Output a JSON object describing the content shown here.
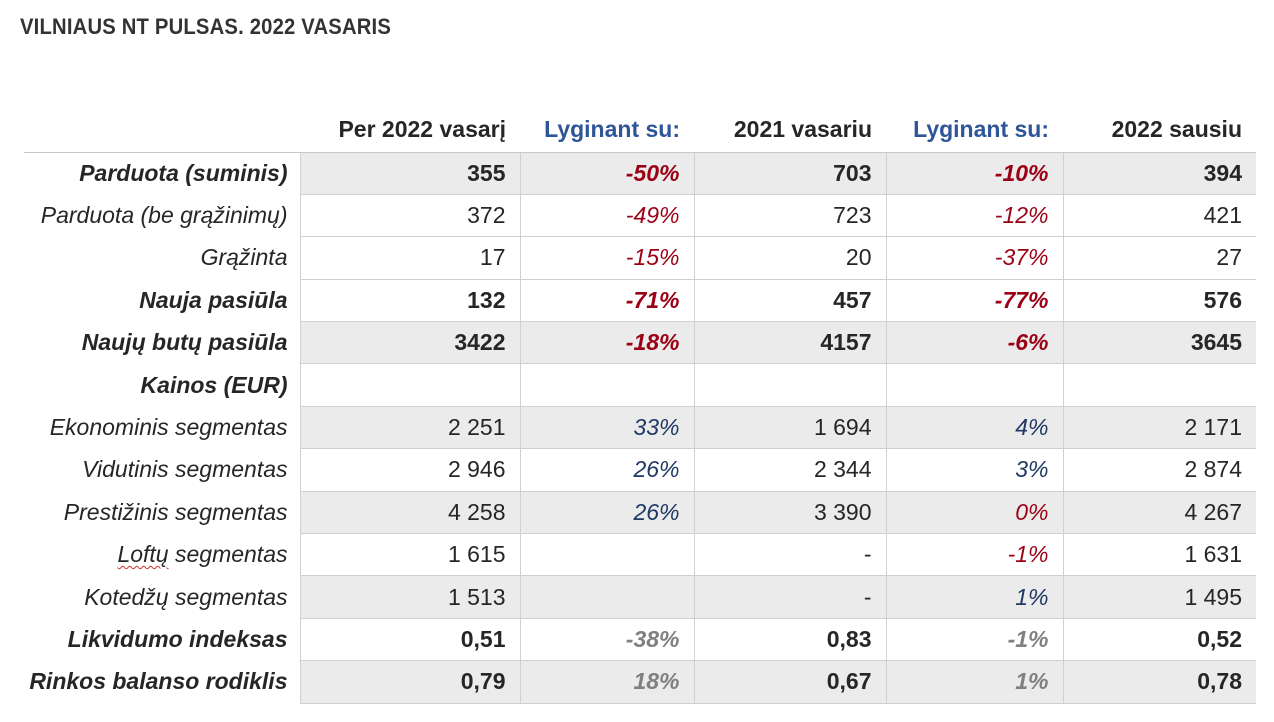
{
  "title": "VILNIAUS NT PULSAS. 2022 VASARIS",
  "header": {
    "col1": "Per 2022 vasarį",
    "col2": "Lyginant su:",
    "col3": "2021 vasariu",
    "col4": "Lyginant su:",
    "col5": "2022 sausiu"
  },
  "colors": {
    "negative": "#9b0014",
    "positive": "#1f3864",
    "neutral": "#808080",
    "header_blue": "#2e5597",
    "row_shade": "#ebebeb"
  },
  "rows": [
    {
      "label": "Parduota (suminis)",
      "current": "355",
      "cmp_prev_year": "-50%",
      "prev_year": "703",
      "cmp_prev_month": "-10%",
      "prev_month": "394"
    },
    {
      "label": "Parduota (be grąžinimų)",
      "current": "372",
      "cmp_prev_year": "-49%",
      "prev_year": "723",
      "cmp_prev_month": "-12%",
      "prev_month": "421"
    },
    {
      "label": "Grąžinta",
      "current": "17",
      "cmp_prev_year": "-15%",
      "prev_year": "20",
      "cmp_prev_month": "-37%",
      "prev_month": "27"
    },
    {
      "label": "Nauja pasiūla",
      "current": "132",
      "cmp_prev_year": "-71%",
      "prev_year": "457",
      "cmp_prev_month": "-77%",
      "prev_month": "576"
    },
    {
      "label": "Naujų butų pasiūla",
      "current": "3422",
      "cmp_prev_year": "-18%",
      "prev_year": "4157",
      "cmp_prev_month": "-6%",
      "prev_month": "3645"
    },
    {
      "label": "Kainos (EUR)",
      "current": "",
      "cmp_prev_year": "",
      "prev_year": "",
      "cmp_prev_month": "",
      "prev_month": ""
    },
    {
      "label": "Ekonominis segmentas",
      "current": "2 251",
      "cmp_prev_year": "33%",
      "prev_year": "1 694",
      "cmp_prev_month": "4%",
      "prev_month": "2 171"
    },
    {
      "label": "Vidutinis segmentas",
      "current": "2 946",
      "cmp_prev_year": "26%",
      "prev_year": "2 344",
      "cmp_prev_month": "3%",
      "prev_month": "2 874"
    },
    {
      "label": "Prestižinis segmentas",
      "current": "4 258",
      "cmp_prev_year": "26%",
      "prev_year": "3 390",
      "cmp_prev_month": "0%",
      "prev_month": "4 267"
    },
    {
      "label_part1": "Loftų",
      "label_part2": " segmentas",
      "current": "1 615",
      "cmp_prev_year": "",
      "prev_year": "-",
      "cmp_prev_month": "-1%",
      "prev_month": "1 631"
    },
    {
      "label": "Kotedžų segmentas",
      "current": "1 513",
      "cmp_prev_year": "",
      "prev_year": "-",
      "cmp_prev_month": "1%",
      "prev_month": "1 495"
    },
    {
      "label": "Likvidumo indeksas",
      "current": "0,51",
      "cmp_prev_year": "-38%",
      "prev_year": "0,83",
      "cmp_prev_month": "-1%",
      "prev_month": "0,52"
    },
    {
      "label": "Rinkos balanso rodiklis",
      "current": "0,79",
      "cmp_prev_year": "18%",
      "prev_year": "0,67",
      "cmp_prev_month": "1%",
      "prev_month": "0,78"
    }
  ]
}
